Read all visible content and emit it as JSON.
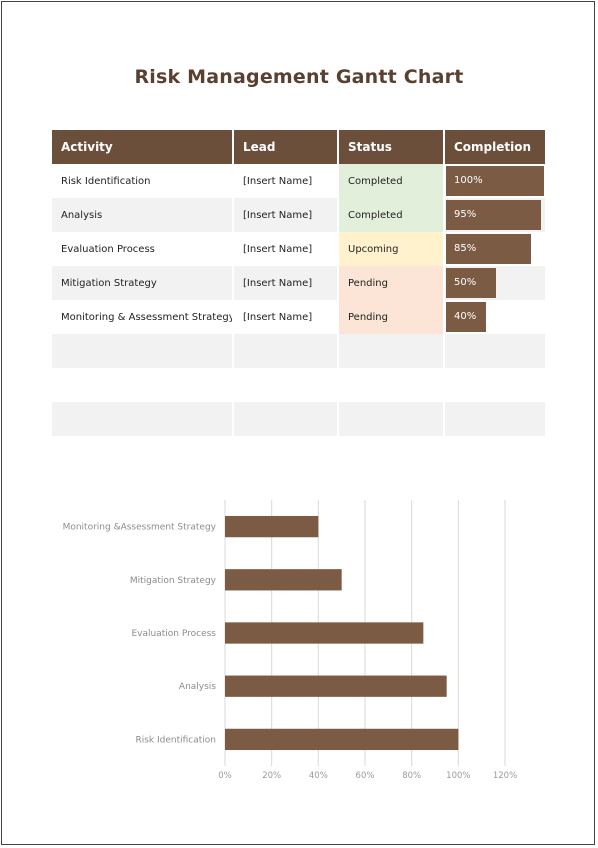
{
  "title": "Risk Management Gantt Chart",
  "table": {
    "headers": [
      "Activity",
      "Lead",
      "Status",
      "Completion"
    ],
    "rows": [
      {
        "activity": "Risk Identification",
        "lead": "[Insert Name]",
        "status": "Completed",
        "completion": "100%",
        "completion_value": 100
      },
      {
        "activity": "Analysis",
        "lead": "[Insert Name]",
        "status": "Completed",
        "completion": "95%",
        "completion_value": 95
      },
      {
        "activity": "Evaluation Process",
        "lead": "[Insert Name]",
        "status": "Upcoming",
        "completion": "85%",
        "completion_value": 85
      },
      {
        "activity": "Mitigation Strategy",
        "lead": "[Insert Name]",
        "status": "Pending",
        "completion": "50%",
        "completion_value": 50
      },
      {
        "activity": "Monitoring & Assessment Strategy",
        "lead": "[Insert Name]",
        "status": "Pending",
        "completion": "40%",
        "completion_value": 40
      }
    ],
    "empty_rows": 3
  },
  "colors": {
    "header_bg": "#6b4f3a",
    "bar": "#7b5b44",
    "title": "#5a4030",
    "completed": "#e2efda",
    "upcoming": "#fff2cc",
    "pending": "#fce4d6"
  },
  "chart_data": {
    "type": "bar",
    "orientation": "horizontal",
    "categories": [
      "Monitoring &Assessment Strategy",
      "Mitigation Strategy",
      "Evaluation Process",
      "Analysis",
      "Risk Identification"
    ],
    "values": [
      40,
      50,
      85,
      95,
      100
    ],
    "xlim": [
      0,
      120
    ],
    "x_ticks": [
      "0%",
      "20%",
      "40%",
      "60%",
      "80%",
      "100%",
      "120%"
    ],
    "grid": "vertical",
    "bar_color": "#7b5b44",
    "title": ""
  }
}
